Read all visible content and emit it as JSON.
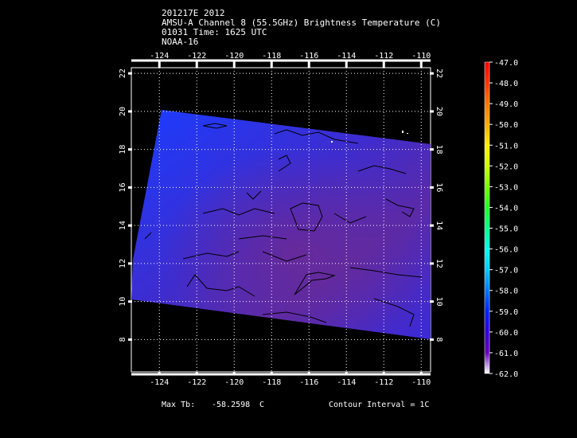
{
  "header": {
    "line1": "201217E 2012",
    "line2": "AMSU-A Channel 8 (55.5GHz) Brightness Temperature (C)",
    "line3": "01031 Time: 1625 UTC",
    "line4": "NOAA-16"
  },
  "map": {
    "lon_range": [
      -125.5,
      -109.5
    ],
    "lat_range": [
      6.3,
      22.3
    ],
    "lon_ticks": [
      "-124",
      "-122",
      "-120",
      "-118",
      "-116",
      "-114",
      "-112",
      "-110"
    ],
    "lat_ticks": [
      "8",
      "10",
      "12",
      "14",
      "16",
      "18",
      "20",
      "22"
    ],
    "grid": true
  },
  "colorbar": {
    "min": -62.0,
    "max": -47.0,
    "labels": [
      "-47.0",
      "-48.0",
      "-49.0",
      "-50.0",
      "-51.0",
      "-52.0",
      "-53.0",
      "-54.0",
      "-55.0",
      "-56.0",
      "-57.0",
      "-58.0",
      "-59.0",
      "-60.0",
      "-61.0",
      "-62.0"
    ],
    "colors": [
      "#ff0000",
      "#ff3300",
      "#ff7700",
      "#ffaa00",
      "#ffee00",
      "#ccff00",
      "#77ff00",
      "#22ff22",
      "#00ff88",
      "#00ffee",
      "#00ccff",
      "#0077ff",
      "#0022ff",
      "#3300dd",
      "#6600bb",
      "#ffffff"
    ]
  },
  "footer": {
    "max_label": "Max Tb:",
    "max_value": "-58.2598",
    "max_unit": "C",
    "contour": "Contour Interval = 1C"
  }
}
